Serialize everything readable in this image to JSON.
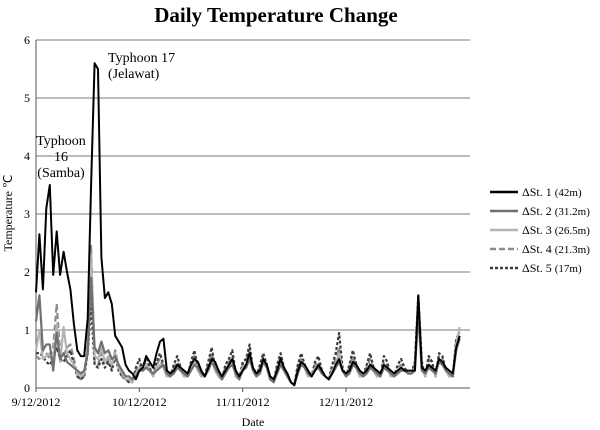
{
  "chart_data": {
    "type": "line",
    "title": "Daily Temperature Change",
    "xlabel": "Date",
    "ylabel": "Temperature ℃",
    "ylim": [
      0,
      6
    ],
    "yticks": [
      0,
      1,
      2,
      3,
      4,
      5,
      6
    ],
    "xlim": [
      "2012-09-12",
      "2013-01-16"
    ],
    "xticks": [
      {
        "date": "2012-09-12",
        "label": "9/12/2012"
      },
      {
        "date": "2012-10-12",
        "label": "10/12/2012"
      },
      {
        "date": "2012-11-11",
        "label": "11/11/2012"
      },
      {
        "date": "2012-12-11",
        "label": "12/11/2012"
      }
    ],
    "grid": "horizontal",
    "legend_position": "right",
    "annotations": [
      {
        "text": [
          "Typhoon",
          "16",
          "(Samba)"
        ]
      },
      {
        "text": [
          "Typhoon 17",
          "(Jelawat)"
        ]
      }
    ],
    "series": [
      {
        "name": "ΔSt. 1",
        "depth": "(42m)",
        "color": "#000000",
        "dash": "solid",
        "values": [
          1.65,
          2.65,
          1.7,
          3.1,
          3.5,
          1.95,
          2.7,
          1.95,
          2.35,
          2.0,
          1.7,
          1.1,
          0.65,
          0.55,
          0.55,
          1.2,
          3.5,
          5.6,
          5.5,
          2.25,
          1.55,
          1.65,
          1.45,
          0.9,
          0.8,
          0.7,
          0.4,
          0.3,
          0.25,
          0.15,
          0.3,
          0.35,
          0.55,
          0.45,
          0.35,
          0.6,
          0.8,
          0.85,
          0.3,
          0.25,
          0.3,
          0.4,
          0.35,
          0.3,
          0.25,
          0.4,
          0.5,
          0.45,
          0.3,
          0.2,
          0.35,
          0.5,
          0.45,
          0.3,
          0.2,
          0.3,
          0.4,
          0.5,
          0.3,
          0.2,
          0.3,
          0.4,
          0.6,
          0.35,
          0.25,
          0.3,
          0.5,
          0.4,
          0.2,
          0.15,
          0.3,
          0.5,
          0.35,
          0.25,
          0.1,
          0.05,
          0.3,
          0.45,
          0.4,
          0.3,
          0.2,
          0.3,
          0.4,
          0.3,
          0.2,
          0.15,
          0.25,
          0.4,
          0.5,
          0.3,
          0.25,
          0.3,
          0.45,
          0.4,
          0.3,
          0.25,
          0.3,
          0.4,
          0.35,
          0.3,
          0.25,
          0.4,
          0.35,
          0.3,
          0.25,
          0.3,
          0.35,
          0.3,
          0.3,
          0.3,
          0.3,
          1.6,
          0.35,
          0.3,
          0.4,
          0.35,
          0.3,
          0.5,
          0.45,
          0.35,
          0.3,
          0.25,
          0.7,
          0.9
        ]
      },
      {
        "name": "ΔSt. 2",
        "depth": "(31.2m)",
        "color": "#707070",
        "dash": "solid",
        "values": [
          1.15,
          1.6,
          0.65,
          0.75,
          0.75,
          0.3,
          0.95,
          0.5,
          0.6,
          0.45,
          0.4,
          0.35,
          0.3,
          0.25,
          0.3,
          0.6,
          1.9,
          0.7,
          0.6,
          0.8,
          0.6,
          0.65,
          0.5,
          0.55,
          0.4,
          0.3,
          0.2,
          0.2,
          0.15,
          0.2,
          0.3,
          0.3,
          0.35,
          0.3,
          0.25,
          0.3,
          0.35,
          0.4,
          0.25,
          0.2,
          0.25,
          0.35,
          0.3,
          0.25,
          0.2,
          0.3,
          0.4,
          0.35,
          0.25,
          0.2,
          0.3,
          0.45,
          0.35,
          0.25,
          0.15,
          0.25,
          0.35,
          0.4,
          0.25,
          0.15,
          0.3,
          0.35,
          0.5,
          0.3,
          0.2,
          0.25,
          0.45,
          0.35,
          0.15,
          0.1,
          0.25,
          0.4,
          0.3,
          0.2,
          0.1,
          0.05,
          0.25,
          0.4,
          0.35,
          0.25,
          0.2,
          0.3,
          0.35,
          0.25,
          0.2,
          0.15,
          0.25,
          0.35,
          0.45,
          0.3,
          0.2,
          0.25,
          0.4,
          0.35,
          0.25,
          0.2,
          0.25,
          0.35,
          0.3,
          0.25,
          0.2,
          0.35,
          0.3,
          0.25,
          0.2,
          0.25,
          0.3,
          0.3,
          0.25,
          0.25,
          0.3,
          1.35,
          0.3,
          0.25,
          0.35,
          0.3,
          0.25,
          0.45,
          0.4,
          0.3,
          0.25,
          0.2,
          0.65,
          0.85
        ]
      },
      {
        "name": "ΔSt. 3",
        "depth": "(26.5m)",
        "color": "#b4b4b4",
        "dash": "solid",
        "values": [
          0.65,
          1.0,
          0.5,
          0.55,
          0.6,
          0.4,
          1.1,
          0.45,
          1.05,
          0.6,
          0.5,
          0.4,
          0.25,
          0.2,
          0.25,
          0.7,
          2.3,
          0.55,
          0.5,
          0.7,
          0.45,
          0.55,
          0.4,
          0.6,
          0.35,
          0.25,
          0.15,
          0.15,
          0.1,
          0.25,
          0.35,
          0.3,
          0.4,
          0.3,
          0.2,
          0.35,
          0.4,
          0.35,
          0.2,
          0.2,
          0.3,
          0.4,
          0.3,
          0.2,
          0.2,
          0.35,
          0.45,
          0.3,
          0.2,
          0.2,
          0.35,
          0.5,
          0.3,
          0.2,
          0.15,
          0.3,
          0.4,
          0.45,
          0.2,
          0.15,
          0.35,
          0.4,
          0.55,
          0.3,
          0.2,
          0.3,
          0.5,
          0.35,
          0.15,
          0.1,
          0.3,
          0.45,
          0.3,
          0.2,
          0.1,
          0.05,
          0.3,
          0.45,
          0.35,
          0.2,
          0.2,
          0.35,
          0.4,
          0.25,
          0.2,
          0.15,
          0.3,
          0.4,
          0.6,
          0.3,
          0.2,
          0.3,
          0.45,
          0.35,
          0.2,
          0.2,
          0.3,
          0.4,
          0.3,
          0.2,
          0.2,
          0.4,
          0.35,
          0.2,
          0.2,
          0.3,
          0.35,
          0.3,
          0.25,
          0.25,
          0.35,
          1.2,
          0.35,
          0.2,
          0.4,
          0.35,
          0.2,
          0.5,
          0.45,
          0.3,
          0.2,
          0.2,
          0.75,
          1.05
        ]
      },
      {
        "name": "ΔSt. 4",
        "depth": "(21.3m)",
        "color": "#8c8c8c",
        "dash": "6,3",
        "values": [
          0.55,
          0.5,
          0.65,
          0.6,
          0.5,
          0.7,
          1.45,
          0.6,
          0.55,
          0.7,
          0.75,
          0.5,
          0.2,
          0.15,
          0.2,
          0.8,
          2.45,
          0.45,
          0.4,
          0.6,
          0.4,
          0.5,
          0.35,
          0.65,
          0.35,
          0.2,
          0.15,
          0.1,
          0.1,
          0.3,
          0.4,
          0.3,
          0.45,
          0.3,
          0.2,
          0.4,
          0.5,
          0.35,
          0.2,
          0.2,
          0.35,
          0.45,
          0.3,
          0.2,
          0.2,
          0.4,
          0.55,
          0.3,
          0.2,
          0.2,
          0.4,
          0.6,
          0.3,
          0.2,
          0.15,
          0.35,
          0.45,
          0.55,
          0.2,
          0.15,
          0.4,
          0.45,
          0.65,
          0.3,
          0.2,
          0.35,
          0.55,
          0.35,
          0.15,
          0.1,
          0.35,
          0.55,
          0.3,
          0.2,
          0.1,
          0.05,
          0.35,
          0.5,
          0.35,
          0.2,
          0.2,
          0.4,
          0.45,
          0.25,
          0.2,
          0.15,
          0.35,
          0.5,
          0.7,
          0.3,
          0.2,
          0.35,
          0.55,
          0.35,
          0.2,
          0.2,
          0.35,
          0.5,
          0.3,
          0.2,
          0.2,
          0.45,
          0.4,
          0.2,
          0.2,
          0.35,
          0.4,
          0.3,
          0.25,
          0.25,
          0.4,
          1.55,
          0.4,
          0.2,
          0.5,
          0.4,
          0.2,
          0.55,
          0.5,
          0.3,
          0.2,
          0.2,
          0.8,
          1.0
        ]
      },
      {
        "name": "ΔSt. 5",
        "depth": "(17m)",
        "color": "#3c3c3c",
        "dash": "3,2",
        "values": [
          0.6,
          0.6,
          0.55,
          0.45,
          0.4,
          0.5,
          0.7,
          0.5,
          0.45,
          0.55,
          0.65,
          0.4,
          0.2,
          0.15,
          0.2,
          0.6,
          1.45,
          0.4,
          0.35,
          0.5,
          0.35,
          0.45,
          0.3,
          0.55,
          0.3,
          0.2,
          0.15,
          0.1,
          0.1,
          0.35,
          0.5,
          0.3,
          0.55,
          0.35,
          0.2,
          0.45,
          0.6,
          0.4,
          0.2,
          0.2,
          0.4,
          0.55,
          0.35,
          0.2,
          0.2,
          0.45,
          0.65,
          0.35,
          0.2,
          0.2,
          0.45,
          0.7,
          0.35,
          0.2,
          0.15,
          0.4,
          0.5,
          0.65,
          0.25,
          0.15,
          0.45,
          0.5,
          0.75,
          0.3,
          0.2,
          0.4,
          0.6,
          0.4,
          0.15,
          0.1,
          0.4,
          0.6,
          0.35,
          0.2,
          0.1,
          0.05,
          0.4,
          0.6,
          0.4,
          0.2,
          0.2,
          0.45,
          0.55,
          0.3,
          0.2,
          0.15,
          0.4,
          0.6,
          0.95,
          0.35,
          0.2,
          0.4,
          0.65,
          0.4,
          0.2,
          0.2,
          0.4,
          0.6,
          0.35,
          0.2,
          0.2,
          0.55,
          0.45,
          0.2,
          0.2,
          0.4,
          0.5,
          0.35,
          0.25,
          0.25,
          0.45,
          1.6,
          0.45,
          0.2,
          0.55,
          0.45,
          0.2,
          0.6,
          0.55,
          0.3,
          0.2,
          0.2,
          0.85,
          0.95
        ]
      }
    ]
  }
}
